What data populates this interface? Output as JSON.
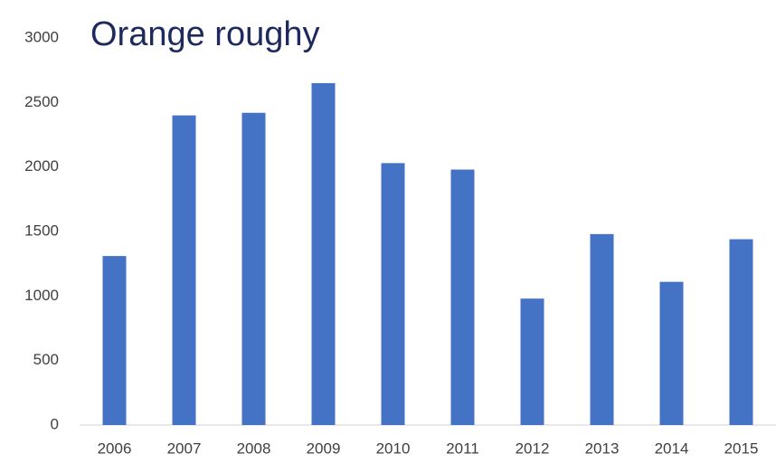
{
  "chart_data": {
    "type": "bar",
    "title": "Orange roughy",
    "categories": [
      "2006",
      "2007",
      "2008",
      "2009",
      "2010",
      "2011",
      "2012",
      "2013",
      "2014",
      "2015"
    ],
    "values": [
      1310,
      2400,
      2420,
      2650,
      2030,
      1980,
      980,
      1480,
      1110,
      1440
    ],
    "color": "#4472c4",
    "ylim": [
      0,
      3000
    ],
    "yticks": [
      0,
      500,
      1000,
      1500,
      2000,
      2500,
      3000
    ],
    "grid": false
  }
}
